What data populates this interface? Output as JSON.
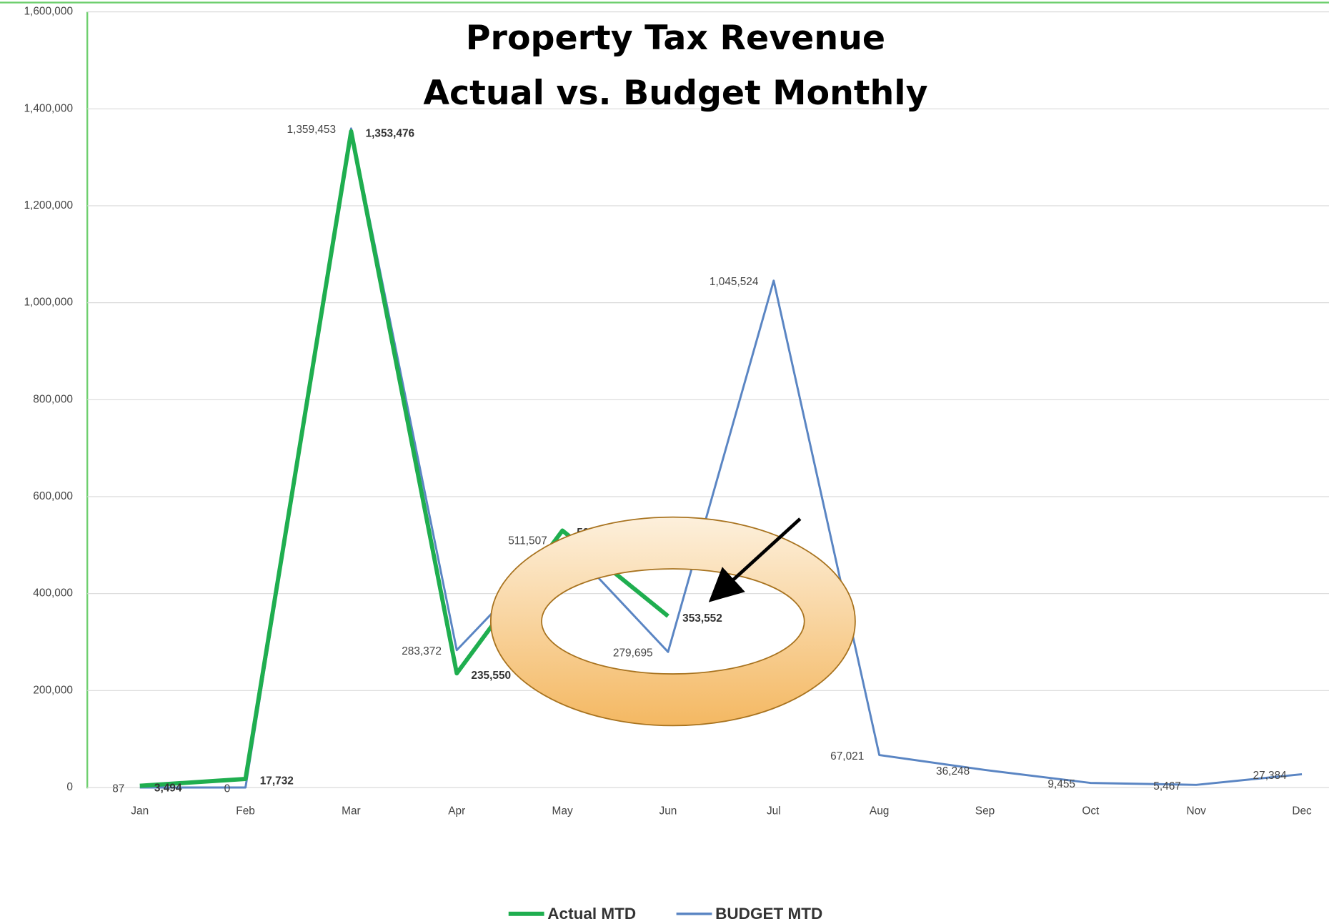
{
  "chart_data": {
    "type": "line",
    "title": "Property Tax Revenue",
    "subtitle": "Actual vs. Budget Monthly",
    "categories": [
      "Jan",
      "Feb",
      "Mar",
      "Apr",
      "May",
      "Jun",
      "Jul",
      "Aug",
      "Sep",
      "Oct",
      "Nov",
      "Dec"
    ],
    "series": [
      {
        "name": "Actual MTD",
        "color": "#1fae4f",
        "values": [
          3494,
          17732,
          1353476,
          235550,
          530000,
          353552,
          null,
          null,
          null,
          null,
          null,
          null
        ],
        "value_labels": [
          "3,494",
          "17,732",
          "1,353,476",
          "235,550",
          "530,000",
          "353,552",
          null,
          null,
          null,
          null,
          null,
          null
        ]
      },
      {
        "name": "BUDGET MTD",
        "color": "#5a85c3",
        "values": [
          87,
          0,
          1359453,
          283372,
          511507,
          279695,
          1045524,
          67021,
          36248,
          9455,
          5467,
          27384
        ],
        "value_labels": [
          "87",
          "0",
          "1,359,453",
          "283,372",
          "511,507",
          "279,695",
          "1,045,524",
          "67,021",
          "36,248",
          "9,455",
          "5,467",
          "27,384"
        ]
      }
    ],
    "ylim": [
      0,
      1600000
    ],
    "yticks": [
      0,
      {
        "value": 200000,
        "label": "200,000"
      },
      {
        "value": 400000,
        "label": "400,000"
      },
      {
        "value": 600000,
        "label": "600,000"
      },
      {
        "value": 800000,
        "label": "800,000"
      },
      {
        "value": 1000000,
        "label": "1,000,000"
      },
      {
        "value": 1200000,
        "label": "1,200,000"
      },
      {
        "value": 1400000,
        "label": "1,400,000"
      },
      {
        "value": 1600000,
        "label": "1,600,000"
      }
    ],
    "grid": true,
    "legend": "bottom"
  }
}
